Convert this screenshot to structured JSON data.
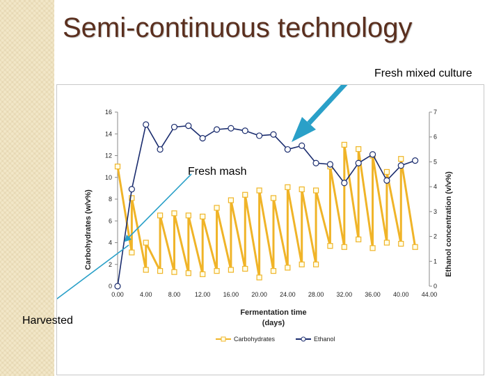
{
  "slide": {
    "title": "Semi-continuous technology",
    "annotations": {
      "fresh_mixed_culture": "Fresh mixed culture",
      "fresh_mash": "Fresh mash",
      "harvested": "Harvested"
    },
    "colors": {
      "carbohydrates": "#f0b428",
      "ethanol": "#1a2c6e",
      "arrow": "#2aa0c8",
      "title": "#5a2f1e"
    }
  },
  "chart_data": {
    "type": "line",
    "xlabel": "Fermentation time (days)",
    "ylabel": "Carbohydrates (w/v%)",
    "y2label": "Ethanol concentration (v/v%)",
    "xlim": [
      0,
      44
    ],
    "ylim": [
      0,
      16
    ],
    "y2lim": [
      0,
      7
    ],
    "x_ticks": [
      "0.00",
      "4.00",
      "8.00",
      "12.00",
      "16.00",
      "20.00",
      "24.00",
      "28.00",
      "32.00",
      "36.00",
      "40.00",
      "44.00"
    ],
    "y_ticks": [
      "0",
      "2",
      "4",
      "6",
      "8",
      "10",
      "12",
      "14",
      "16"
    ],
    "y2_ticks": [
      "0",
      "1",
      "2",
      "3",
      "4",
      "5",
      "6",
      "7"
    ],
    "grid": false,
    "legend_position": "bottom",
    "series": [
      {
        "name": "Carbohydrates",
        "axis": "left",
        "marker": "square",
        "color": "#f0b428",
        "x": [
          0,
          2,
          2,
          4,
          4,
          6,
          6,
          8,
          8,
          10,
          10,
          12,
          12,
          14,
          14,
          16,
          16,
          18,
          18,
          20,
          20,
          22,
          22,
          24,
          24,
          26,
          26,
          28,
          28,
          30,
          30,
          32,
          32,
          34,
          34,
          36,
          36,
          38,
          38,
          40,
          40,
          42
        ],
        "values": [
          11.0,
          3.1,
          8.1,
          1.5,
          4.0,
          1.4,
          6.5,
          1.3,
          6.7,
          1.2,
          6.5,
          1.1,
          6.4,
          1.4,
          7.2,
          1.5,
          7.9,
          1.6,
          8.4,
          0.8,
          8.8,
          1.4,
          8.1,
          1.7,
          9.1,
          2.0,
          8.9,
          2.0,
          8.8,
          3.7,
          11.0,
          3.6,
          13.0,
          4.3,
          12.6,
          3.5,
          12.0,
          4.0,
          10.5,
          3.9,
          11.7,
          3.6
        ]
      },
      {
        "name": "Ethanol",
        "axis": "right",
        "marker": "circle",
        "color": "#1a2c6e",
        "x": [
          0,
          2,
          4,
          6,
          8,
          10,
          12,
          14,
          16,
          18,
          20,
          22,
          24,
          26,
          28,
          30,
          32,
          34,
          36,
          38,
          40,
          42
        ],
        "values": [
          0,
          3.9,
          6.5,
          5.5,
          6.4,
          6.45,
          5.95,
          6.3,
          6.35,
          6.25,
          6.05,
          6.1,
          5.5,
          5.65,
          4.95,
          4.9,
          4.15,
          4.95,
          5.3,
          4.25,
          4.85,
          5.05
        ]
      }
    ]
  }
}
